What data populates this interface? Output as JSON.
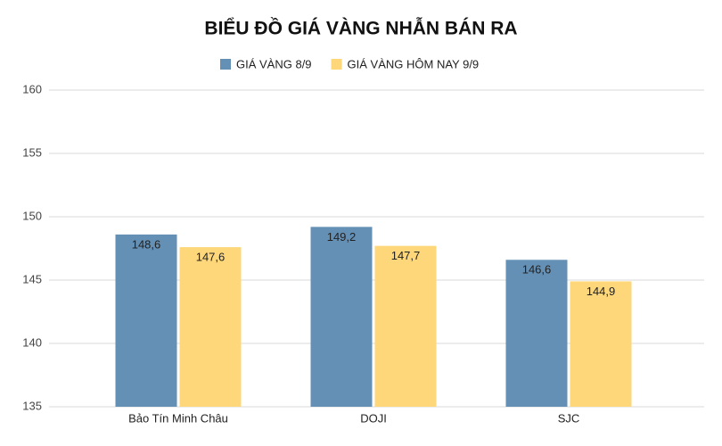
{
  "chart_data": {
    "type": "bar",
    "title": "BIỂU ĐỒ GIÁ VÀNG NHẪN BÁN RA",
    "categories": [
      "Bảo Tín Minh Châu",
      "DOJI",
      "SJC"
    ],
    "series": [
      {
        "name": "GIÁ VÀNG 8/9",
        "color": "#6590b5",
        "values": [
          148.6,
          149.2,
          146.6
        ],
        "value_labels": [
          "148,6",
          "149,2",
          "146,6"
        ]
      },
      {
        "name": "GIÁ VÀNG HÔM NAY 9/9",
        "color": "#fdd77a",
        "values": [
          147.6,
          147.7,
          144.9
        ],
        "value_labels": [
          "147,6",
          "147,7",
          "144,9"
        ]
      }
    ],
    "ylim": [
      135,
      160
    ],
    "yticks": [
      135,
      140,
      145,
      150,
      155,
      160
    ],
    "grid": true
  }
}
